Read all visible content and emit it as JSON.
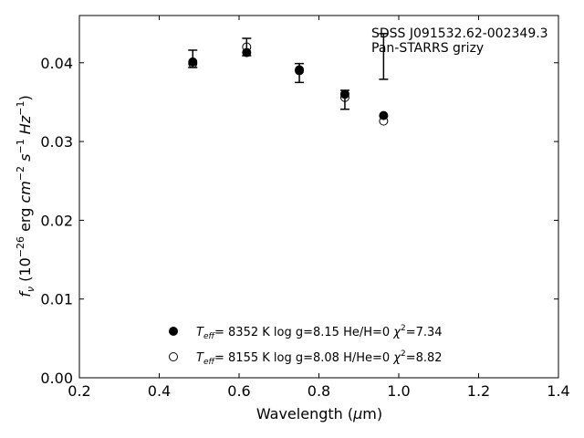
{
  "chart_data": {
    "type": "scatter",
    "annotation": [
      "SDSS J091532.62-002349.3",
      "Pan-STARRS grizy"
    ],
    "xlabel": "Wavelength (μm)",
    "ylabel": "fν (10⁻²⁶ erg cm⁻² s⁻¹ Hz⁻¹)",
    "xlim": [
      0.2,
      1.4
    ],
    "ylim": [
      0.0,
      0.046
    ],
    "xticks": [
      "0.2",
      "0.4",
      "0.6",
      "0.8",
      "1.0",
      "1.2",
      "1.4"
    ],
    "yticks": [
      "0.00",
      "0.01",
      "0.02",
      "0.03",
      "0.04"
    ],
    "grid": false,
    "legend_position": "lower-center",
    "observed": {
      "x": [
        0.484,
        0.619,
        0.751,
        0.865,
        0.962
      ],
      "y": [
        0.0405,
        0.042,
        0.0387,
        0.0353,
        0.0408
      ],
      "yerr": [
        0.0011,
        0.0011,
        0.0012,
        0.0012,
        0.0029
      ]
    },
    "series": [
      {
        "legend_label": "Teff=  8352 K  log g=8.15  He/H=0  χ²=7.34",
        "marker": "filled",
        "x": [
          0.484,
          0.619,
          0.751,
          0.865,
          0.962
        ],
        "y": [
          0.0401,
          0.0413,
          0.0391,
          0.036,
          0.0333
        ]
      },
      {
        "legend_label": "Teff=  8155 K  log g=8.08  H/He=0  χ²=8.82",
        "marker": "open",
        "x": [
          0.484,
          0.619,
          0.751,
          0.865,
          0.962
        ],
        "y": [
          0.0399,
          0.042,
          0.039,
          0.0356,
          0.0326
        ]
      }
    ]
  }
}
